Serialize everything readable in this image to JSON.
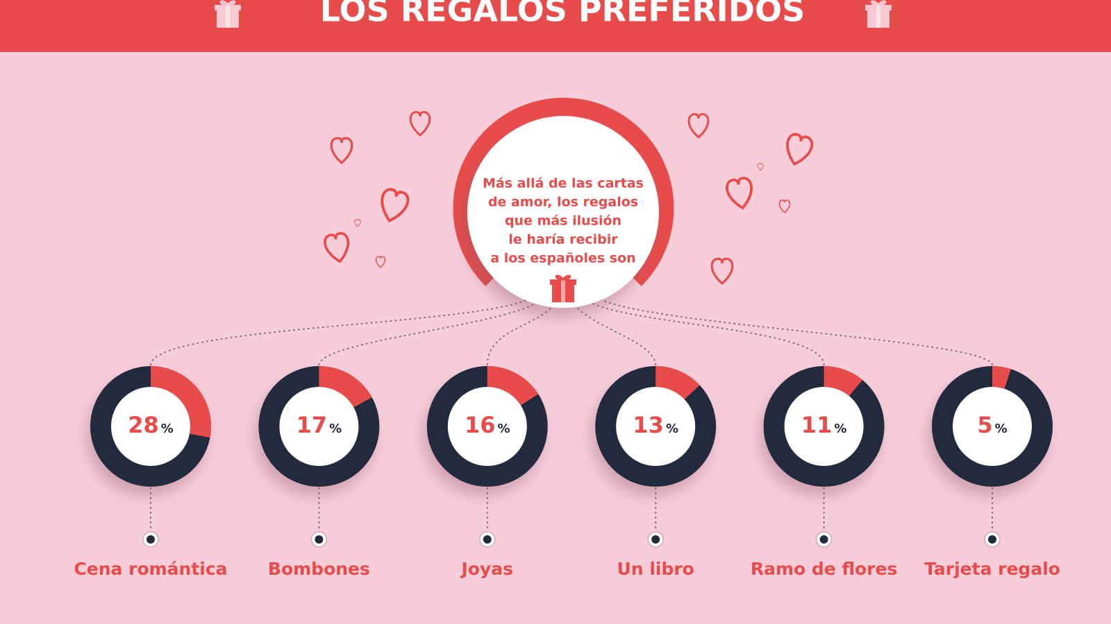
{
  "chart_data": {
    "type": "donut",
    "title": "LOS REGALOS PREFERIDOS",
    "intro_lines": [
      "Más allá de las cartas",
      "de amor, los regalos",
      "que más ilusión",
      "le haría recibir",
      "a los españoles son"
    ],
    "categories": [
      "Cena romántica",
      "Bombones",
      "Joyas",
      "Un libro",
      "Ramo de flores",
      "Tarjeta regalo"
    ],
    "values": [
      28,
      17,
      16,
      13,
      11,
      5
    ],
    "unit_label": "%",
    "color": "#e84c4a",
    "rest_color": "#232a3c"
  }
}
